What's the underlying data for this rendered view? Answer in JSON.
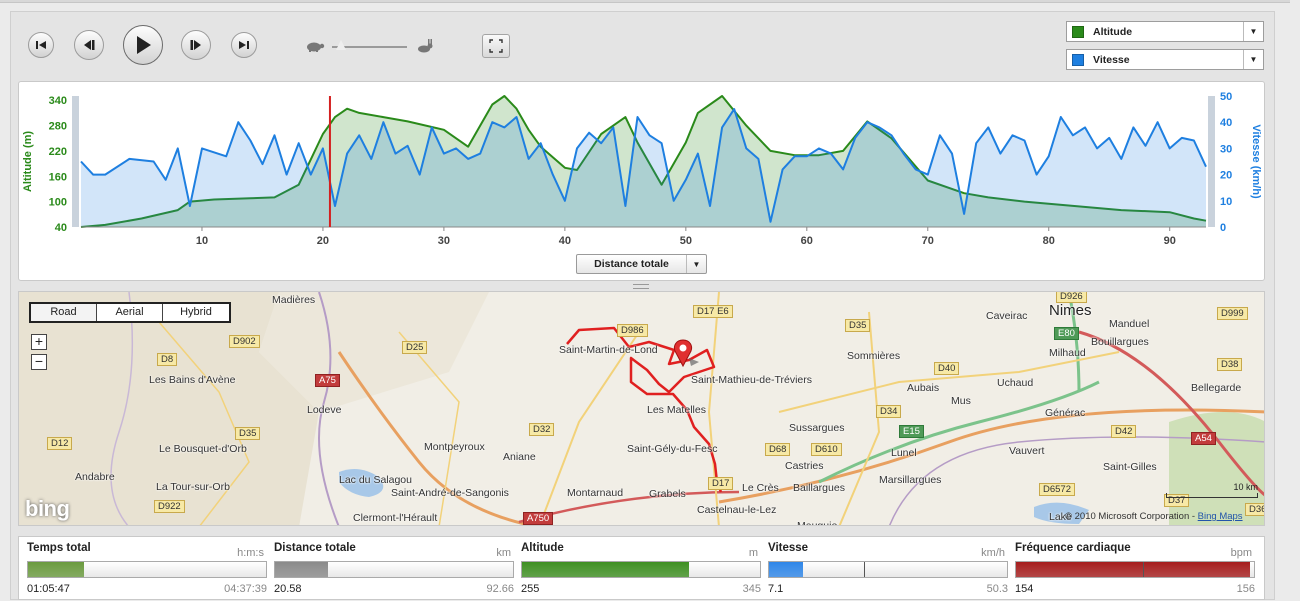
{
  "toolbar": {
    "buttons": [
      "skip-back",
      "step-back",
      "play",
      "step-forward",
      "skip-forward"
    ],
    "speed_level": 0.05,
    "series_selectors": [
      {
        "label": "Altitude",
        "color": "#2a8a1a"
      },
      {
        "label": "Vitesse",
        "color": "#1e7fe0"
      }
    ]
  },
  "chart_data": {
    "type": "area",
    "xlabel": "",
    "x_ticks": [
      "10",
      "20",
      "30",
      "40",
      "50",
      "60",
      "70",
      "80",
      "90"
    ],
    "xlim": [
      0,
      93
    ],
    "y_left": {
      "label": "Altitude (m)",
      "ticks": [
        "40",
        "100",
        "160",
        "220",
        "280",
        "340"
      ],
      "lim": [
        40,
        350
      ],
      "color": "#2a8a1a"
    },
    "y_right": {
      "label": "Vitesse (km/h)",
      "ticks": [
        "0",
        "10",
        "20",
        "30",
        "40",
        "50"
      ],
      "lim": [
        0,
        50
      ],
      "color": "#1e7fe0"
    },
    "cursor_x": 20.58,
    "series": [
      {
        "name": "Altitude",
        "color": "#2a8a1a",
        "axis": "left",
        "x": [
          0,
          2,
          5,
          8,
          9,
          11,
          14,
          16,
          18,
          19,
          20,
          21,
          22,
          23,
          25,
          27,
          30,
          32,
          34,
          35,
          36,
          37,
          38,
          40,
          41,
          43,
          45,
          46,
          48,
          50,
          51,
          53,
          55,
          57,
          59,
          61,
          63,
          65,
          67,
          70,
          73,
          75,
          78,
          80,
          82,
          86,
          90,
          92,
          93
        ],
        "y": [
          40,
          45,
          60,
          80,
          100,
          105,
          108,
          110,
          140,
          200,
          260,
          300,
          320,
          310,
          300,
          290,
          270,
          230,
          330,
          360,
          320,
          270,
          230,
          180,
          175,
          260,
          300,
          240,
          140,
          240,
          310,
          360,
          280,
          220,
          210,
          210,
          220,
          290,
          250,
          150,
          120,
          110,
          100,
          95,
          90,
          80,
          75,
          60,
          55
        ]
      },
      {
        "name": "Vitesse",
        "color": "#1e7fe0",
        "axis": "right",
        "x": [
          0,
          1,
          2,
          4,
          6,
          7,
          8,
          9,
          10,
          12,
          13,
          14,
          15,
          16,
          17,
          18,
          19,
          20,
          21,
          22,
          23,
          24,
          25,
          26,
          27,
          28,
          29,
          30,
          31,
          32,
          33,
          34,
          35,
          36,
          37,
          38,
          39,
          40,
          41,
          42,
          43,
          44,
          45,
          46,
          47,
          48,
          49,
          50,
          51,
          52,
          53,
          54,
          55,
          56,
          57,
          58,
          59,
          60,
          61,
          62,
          63,
          64,
          65,
          66,
          67,
          68,
          69,
          70,
          71,
          72,
          73,
          74,
          75,
          76,
          77,
          78,
          79,
          80,
          81,
          82,
          83,
          84,
          85,
          86,
          87,
          88,
          89,
          90,
          91,
          92,
          93
        ],
        "y": [
          25,
          20,
          20,
          26,
          25,
          18,
          30,
          8,
          30,
          27,
          40,
          33,
          24,
          35,
          20,
          32,
          20,
          30,
          8,
          28,
          35,
          26,
          40,
          28,
          31,
          20,
          38,
          28,
          30,
          26,
          28,
          40,
          38,
          42,
          26,
          32,
          20,
          10,
          30,
          36,
          32,
          38,
          8,
          42,
          35,
          32,
          10,
          18,
          28,
          8,
          38,
          45,
          30,
          26,
          2,
          22,
          27,
          27,
          30,
          28,
          22,
          34,
          40,
          38,
          35,
          28,
          22,
          20,
          35,
          28,
          5,
          32,
          38,
          28,
          35,
          33,
          20,
          27,
          42,
          35,
          38,
          30,
          34,
          26,
          38,
          31,
          40,
          30,
          34,
          33,
          23
        ]
      }
    ]
  },
  "chart_footer": {
    "dropdown_label": "Distance totale"
  },
  "map": {
    "type_buttons": [
      "Road",
      "Aerial",
      "Hybrid"
    ],
    "zoom_in": "+",
    "zoom_out": "−",
    "places": [
      {
        "name": "Madières"
      },
      {
        "name": "Saint-Martin-de-Lond"
      },
      {
        "name": "Saint-Mathieu-de-Tréviers"
      },
      {
        "name": "Nimes"
      },
      {
        "name": "Caveirac"
      },
      {
        "name": "Manduel"
      },
      {
        "name": "Milhaud"
      },
      {
        "name": "Bouillargues"
      },
      {
        "name": "Sommières"
      },
      {
        "name": "Les Bains d'Avène"
      },
      {
        "name": "Lodeve"
      },
      {
        "name": "Les Matelles"
      },
      {
        "name": "Aubais"
      },
      {
        "name": "Uchaud"
      },
      {
        "name": "Bellegarde"
      },
      {
        "name": "Mus"
      },
      {
        "name": "Générac"
      },
      {
        "name": "Sussargues"
      },
      {
        "name": "Le Bousquet-d'Orb"
      },
      {
        "name": "Montpeyroux"
      },
      {
        "name": "Saint-Gély-du-Fesc"
      },
      {
        "name": "Lunel"
      },
      {
        "name": "Vauvert"
      },
      {
        "name": "Aniane"
      },
      {
        "name": "Castries"
      },
      {
        "name": "Andabre"
      },
      {
        "name": "Saint-Gilles"
      },
      {
        "name": "La Tour-sur-Orb"
      },
      {
        "name": "Marsillargues"
      },
      {
        "name": "Montarnaud"
      },
      {
        "name": "Grabels"
      },
      {
        "name": "Le Crès"
      },
      {
        "name": "Baillargues"
      },
      {
        "name": "Saint-André-de-Sangonis"
      },
      {
        "name": "Lac du Salagou"
      },
      {
        "name": "Clermont-l'Hérault"
      },
      {
        "name": "Castelnau-le-Lez"
      },
      {
        "name": "Mauguio"
      },
      {
        "name": "Lake"
      }
    ],
    "roads": [
      "D986",
      "D17 E6",
      "D35",
      "D926",
      "D999",
      "E80",
      "D38",
      "D8",
      "D902",
      "D25",
      "A75",
      "D40",
      "D34",
      "D35",
      "D32",
      "D12",
      "D68",
      "D610",
      "E15",
      "D42",
      "A54",
      "D17",
      "D6572",
      "D37",
      "D922",
      "A750",
      "D36"
    ],
    "scale_label": "10 km",
    "copyright": "© 2010 Microsoft Corporation -",
    "copyright_link": "Bing Maps",
    "logo": "bing"
  },
  "stats": [
    {
      "title": "Temps total",
      "unit": "h:m:s",
      "value": "01:05:47",
      "max": "04:37:39",
      "fill_color": "#6a9a3e",
      "fill_frac": 0.237
    },
    {
      "title": "Distance totale",
      "unit": "km",
      "value": "20.58",
      "max": "92.66",
      "fill_color": "#8a8a8a",
      "fill_frac": 0.222
    },
    {
      "title": "Altitude",
      "unit": "m",
      "value": "255",
      "max": "345",
      "fill_color": "#3e8f22",
      "fill_frac": 0.7
    },
    {
      "title": "Vitesse",
      "unit": "km/h",
      "value": "7.1",
      "max": "50.3",
      "fill_color": "#2f86e8",
      "fill_frac": 0.141,
      "marker_frac": 0.4
    },
    {
      "title": "Fréquence cardiaque",
      "unit": "bpm",
      "value": "154",
      "max": "156",
      "fill_color": "#a51e1e",
      "fill_frac": 0.985,
      "marker_frac": 0.535
    }
  ]
}
